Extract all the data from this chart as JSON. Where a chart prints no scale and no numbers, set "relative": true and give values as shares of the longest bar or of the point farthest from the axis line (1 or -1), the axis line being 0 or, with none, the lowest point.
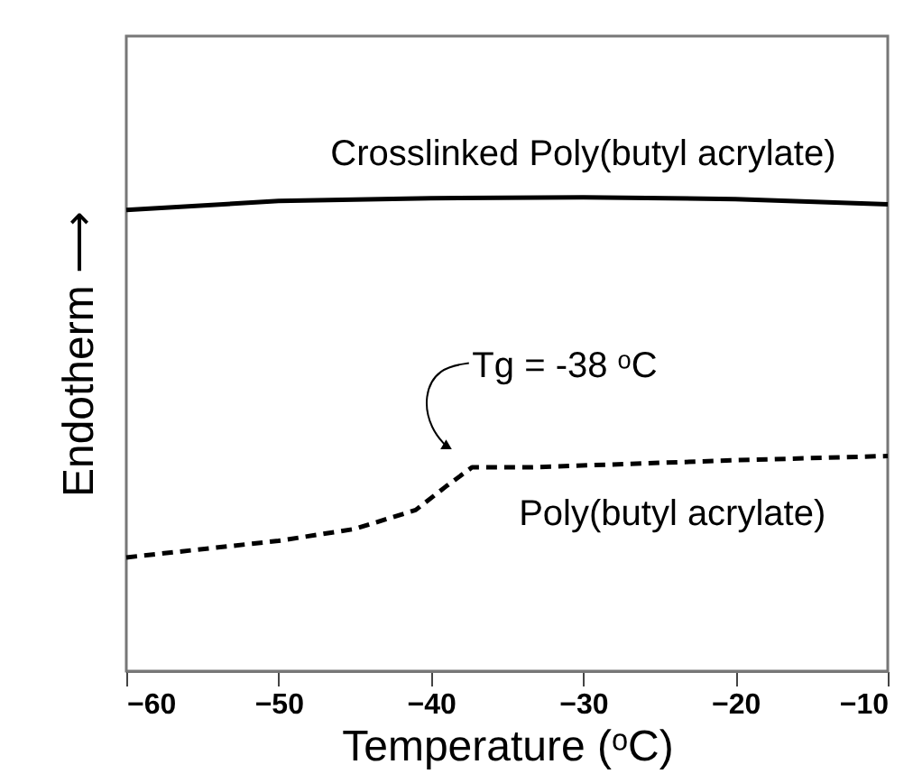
{
  "chart_data": {
    "type": "line",
    "relative": true,
    "xlabel": "Temperature (ᵒC)",
    "ylabel": "Endotherm ⟶",
    "xlim": [
      -60,
      -10
    ],
    "xticks": [
      -60,
      -50,
      -40,
      -30,
      -20,
      -10
    ],
    "tick_labels": "x",
    "grid": false,
    "series": [
      {
        "name": "Crosslinked Poly(butyl acrylate)",
        "color": "#000000",
        "line_style": "solid",
        "x": [
          -60,
          -50,
          -40,
          -30,
          -20,
          -10
        ],
        "values": [
          0.973,
          0.992,
          0.998,
          1,
          0.996,
          0.985
        ]
      },
      {
        "name": "Poly(butyl acrylate)",
        "color": "#000000",
        "line_style": "dashed",
        "x": [
          -60,
          -50,
          -45,
          -41,
          -39,
          -37.3,
          -33.6,
          -20,
          -10
        ],
        "values": [
          0.24,
          0.275,
          0.3,
          0.34,
          0.39,
          0.43,
          0.43,
          0.445,
          0.454
        ]
      }
    ],
    "annotations": [
      {
        "text": "Tg = -38 ᵒC",
        "x": -38,
        "y": 0.43
      }
    ]
  }
}
